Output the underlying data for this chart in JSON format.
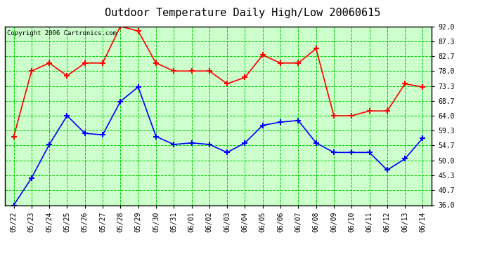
{
  "title": "Outdoor Temperature Daily High/Low 20060615",
  "copyright_text": "Copyright 2006 Cartronics.com",
  "dates": [
    "05/22",
    "05/23",
    "05/24",
    "05/25",
    "05/26",
    "05/27",
    "05/28",
    "05/29",
    "05/30",
    "05/31",
    "06/01",
    "06/02",
    "06/03",
    "06/04",
    "06/05",
    "06/06",
    "06/07",
    "06/08",
    "06/09",
    "06/10",
    "06/11",
    "06/12",
    "06/13",
    "06/14"
  ],
  "high_temps": [
    57.5,
    78.0,
    80.5,
    76.5,
    80.5,
    80.5,
    92.0,
    90.5,
    80.5,
    78.0,
    78.0,
    78.0,
    74.0,
    76.0,
    83.0,
    80.5,
    80.5,
    85.0,
    64.0,
    64.0,
    65.5,
    65.5,
    74.0,
    73.0
  ],
  "low_temps": [
    36.0,
    44.5,
    55.0,
    64.0,
    58.5,
    58.0,
    68.5,
    73.0,
    57.5,
    55.0,
    55.5,
    55.0,
    52.5,
    55.5,
    61.0,
    62.0,
    62.5,
    55.5,
    52.5,
    52.5,
    52.5,
    47.0,
    50.5,
    57.0
  ],
  "high_color": "#ff0000",
  "low_color": "#0000ff",
  "bg_color": "#ccffcc",
  "grid_color": "#00cc00",
  "marker": "+",
  "marker_size": 6,
  "linewidth": 1.2,
  "markeredgewidth": 1.5,
  "ylim": [
    36.0,
    92.0
  ],
  "yticks": [
    36.0,
    40.7,
    45.3,
    50.0,
    54.7,
    59.3,
    64.0,
    68.7,
    73.3,
    78.0,
    82.7,
    87.3,
    92.0
  ],
  "ytick_labels": [
    "36.0",
    "40.7",
    "45.3",
    "50.0",
    "54.7",
    "59.3",
    "64.0",
    "68.7",
    "73.3",
    "78.0",
    "82.7",
    "87.3",
    "92.0"
  ],
  "title_fontsize": 11,
  "copyright_fontsize": 6.5,
  "tick_fontsize": 7,
  "ytick_fontsize": 7
}
